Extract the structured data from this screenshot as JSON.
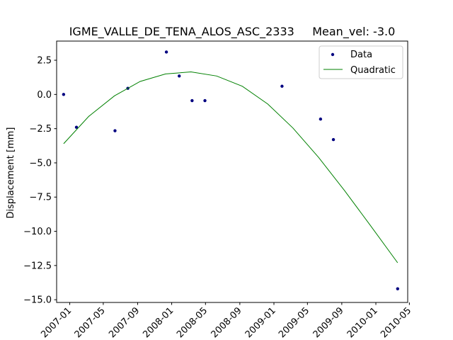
{
  "chart_data": {
    "type": "scatter",
    "title": "IGME_VALLE_DE_TENA_ALOS_ASC_2333     Mean_vel: -3.0",
    "xlabel": "",
    "ylabel": "Displacement [mm]",
    "xlim": [
      "2006-11-15",
      "2010-04-25"
    ],
    "ylim": [
      -15.2,
      3.9
    ],
    "x_ticks": [
      "2007-01",
      "2007-05",
      "2007-09",
      "2008-01",
      "2008-05",
      "2008-09",
      "2009-01",
      "2009-05",
      "2009-09",
      "2010-01",
      "2010-05"
    ],
    "y_ticks": [
      "2.5",
      "0.0",
      "−2.5",
      "−5.0",
      "−7.5",
      "−10.0",
      "−12.5",
      "−15.0"
    ],
    "legend": {
      "position": "top-right",
      "entries": [
        "Data",
        "Quadratic"
      ]
    },
    "colors": {
      "data": "#000080",
      "quadratic": "#008000",
      "axes": "#000000"
    },
    "grid": false,
    "series": [
      {
        "name": "Data",
        "kind": "points",
        "x": [
          "2006-12-10",
          "2007-01-25",
          "2007-06-12",
          "2007-07-28",
          "2007-12-13",
          "2008-01-28",
          "2008-03-14",
          "2008-04-29",
          "2009-01-30",
          "2009-06-17",
          "2009-08-02",
          "2010-03-20"
        ],
        "y": [
          0.0,
          -2.4,
          -2.65,
          0.45,
          3.1,
          1.35,
          -0.45,
          -0.45,
          0.6,
          -1.8,
          -3.3,
          -14.2
        ]
      },
      {
        "name": "Quadratic",
        "kind": "line",
        "x": [
          "2006-12-10",
          "2007-03-10",
          "2007-06-10",
          "2007-09-10",
          "2007-12-10",
          "2008-03-10",
          "2008-06-10",
          "2008-09-10",
          "2008-12-10",
          "2009-03-10",
          "2009-06-10",
          "2009-09-10",
          "2009-12-10",
          "2010-03-20"
        ],
        "y": [
          -3.6,
          -1.6,
          -0.1,
          0.95,
          1.5,
          1.65,
          1.35,
          0.6,
          -0.7,
          -2.45,
          -4.6,
          -7.0,
          -9.5,
          -12.3
        ]
      }
    ]
  }
}
